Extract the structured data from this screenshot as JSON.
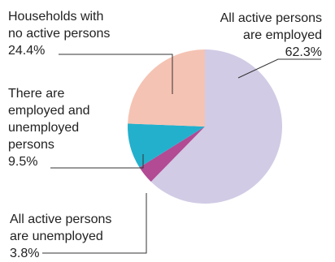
{
  "chart_data": {
    "type": "pie",
    "title": "",
    "slices": [
      {
        "name_lines": [
          "All active persons",
          "are employed"
        ],
        "value_label": "62.3%",
        "value": 62.3,
        "color": "#d1cbe5"
      },
      {
        "name_lines": [
          "All active persons",
          "are unemployed"
        ],
        "value_label": "3.8%",
        "value": 3.8,
        "color": "#b24a94"
      },
      {
        "name_lines": [
          "There are",
          "employed and",
          "unemployed",
          "persons"
        ],
        "value_label": "9.5%",
        "value": 9.5,
        "color": "#23b0cd"
      },
      {
        "name_lines": [
          "Households with",
          "no active persons"
        ],
        "value_label": "24.4%",
        "value": 24.4,
        "color": "#f5c3b3"
      }
    ],
    "start_angle_deg": 0,
    "direction": "clockwise",
    "legend": "none",
    "leader_line_color": "#333333"
  }
}
